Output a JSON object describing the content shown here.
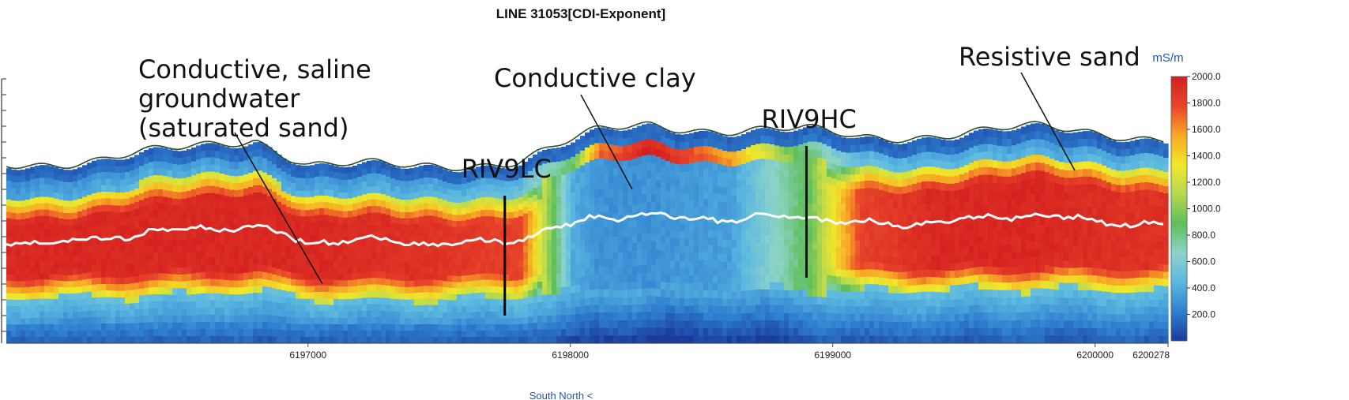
{
  "chart_data": {
    "type": "heatmap",
    "title": "LINE  31053[CDI-Exponent]",
    "colorbar": {
      "unit": "mS/m",
      "ticks": [
        2000.0,
        1800.0,
        1600.0,
        1400.0,
        1200.0,
        1000.0,
        800.0,
        600.0,
        400.0,
        200.0
      ],
      "tick_labels": [
        "2000.0",
        "1800.0",
        "1600.0",
        "1400.0",
        "1200.0",
        "1000.0",
        "800.0",
        "600.0",
        "400.0",
        "200.0"
      ],
      "range": [
        0,
        2000
      ],
      "colors": [
        "#1a3a9c",
        "#2f7fd0",
        "#5ab8e0",
        "#8ed3c9",
        "#5cbf5a",
        "#b8d850",
        "#f0e82a",
        "#f7a825",
        "#e8452a",
        "#d42020"
      ]
    },
    "x_axis": {
      "tick_labels": [
        "6197000",
        "6198000",
        "6199000",
        "6200000",
        "6200278"
      ],
      "ticks": [
        6197000,
        6198000,
        6199000,
        6200000,
        6200278
      ],
      "range": [
        6195850,
        6200278
      ],
      "direction_label": "South North <"
    },
    "annotations": [
      {
        "text": [
          "Conductive, saline",
          "groundwater",
          "(saturated sand)"
        ]
      },
      {
        "text": [
          "Conductive clay"
        ]
      },
      {
        "text": [
          "Resistive sand"
        ]
      },
      {
        "text": [
          "RIV9LC"
        ],
        "x": 6197750
      },
      {
        "text": [
          "RIV9HC"
        ],
        "x": 6198900
      }
    ],
    "conductivity_profile": {
      "x": [
        6195850,
        6196200,
        6196500,
        6196800,
        6197000,
        6197400,
        6197800,
        6198000,
        6198100,
        6198300,
        6198600,
        6198900,
        6199100,
        6199400,
        6199800,
        6200100,
        6200278
      ],
      "surface_relief": [
        0.55,
        0.6,
        0.7,
        0.85,
        0.55,
        0.5,
        0.6,
        0.8,
        0.9,
        1.0,
        0.95,
        0.92,
        0.85,
        0.9,
        0.95,
        0.9,
        0.85
      ],
      "shallow_layer_mS_m": [
        150,
        200,
        220,
        180,
        200,
        220,
        300,
        700,
        1500,
        1800,
        1400,
        600,
        300,
        250,
        200,
        250,
        300
      ],
      "mid_layer_mS_m": [
        1950,
        1950,
        1950,
        1950,
        1950,
        1900,
        1800,
        400,
        300,
        300,
        350,
        900,
        1800,
        1950,
        1950,
        1900,
        1900
      ],
      "deep_layer_mS_m": [
        500,
        500,
        500,
        500,
        500,
        500,
        500,
        450,
        400,
        400,
        400,
        450,
        500,
        500,
        500,
        500,
        500
      ]
    }
  }
}
